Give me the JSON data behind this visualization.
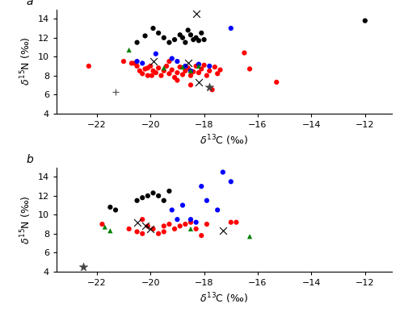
{
  "panel_a": {
    "red_circles": [
      [
        -22.3,
        9.0
      ],
      [
        -21.0,
        9.5
      ],
      [
        -20.7,
        9.3
      ],
      [
        -20.5,
        9.0
      ],
      [
        -20.4,
        8.5
      ],
      [
        -20.3,
        8.2
      ],
      [
        -20.2,
        8.7
      ],
      [
        -20.1,
        8.0
      ],
      [
        -20.0,
        9.0
      ],
      [
        -19.9,
        8.5
      ],
      [
        -19.8,
        8.3
      ],
      [
        -19.7,
        8.8
      ],
      [
        -19.6,
        8.0
      ],
      [
        -19.5,
        8.5
      ],
      [
        -19.4,
        9.0
      ],
      [
        -19.3,
        8.2
      ],
      [
        -19.2,
        8.6
      ],
      [
        -19.1,
        7.8
      ],
      [
        -19.0,
        8.3
      ],
      [
        -18.9,
        8.9
      ],
      [
        -18.8,
        8.1
      ],
      [
        -18.7,
        8.5
      ],
      [
        -18.6,
        8.8
      ],
      [
        -18.5,
        8.0
      ],
      [
        -18.4,
        8.4
      ],
      [
        -18.3,
        9.0
      ],
      [
        -18.2,
        8.3
      ],
      [
        -18.1,
        8.7
      ],
      [
        -18.0,
        9.1
      ],
      [
        -17.9,
        8.0
      ],
      [
        -17.8,
        8.5
      ],
      [
        -17.7,
        6.5
      ],
      [
        -17.6,
        8.9
      ],
      [
        -17.5,
        8.2
      ],
      [
        -17.4,
        8.6
      ],
      [
        -16.5,
        10.4
      ],
      [
        -16.3,
        8.7
      ],
      [
        -15.3,
        7.3
      ],
      [
        -20.6,
        9.3
      ],
      [
        -19.95,
        8.0
      ],
      [
        -19.0,
        7.5
      ],
      [
        -18.5,
        7.0
      ],
      [
        -20.1,
        8.8
      ],
      [
        -19.3,
        9.5
      ]
    ],
    "blue_circles": [
      [
        -20.5,
        9.5
      ],
      [
        -20.3,
        9.3
      ],
      [
        -19.8,
        10.3
      ],
      [
        -19.2,
        9.8
      ],
      [
        -19.0,
        9.5
      ],
      [
        -18.7,
        9.0
      ],
      [
        -18.5,
        8.5
      ],
      [
        -18.2,
        9.2
      ],
      [
        -17.8,
        9.0
      ],
      [
        -17.0,
        13.0
      ]
    ],
    "black_circles": [
      [
        -20.5,
        11.5
      ],
      [
        -20.2,
        12.2
      ],
      [
        -19.9,
        13.0
      ],
      [
        -19.7,
        12.5
      ],
      [
        -19.5,
        12.0
      ],
      [
        -19.3,
        11.5
      ],
      [
        -19.1,
        11.8
      ],
      [
        -18.9,
        12.3
      ],
      [
        -18.8,
        12.0
      ],
      [
        -18.7,
        11.5
      ],
      [
        -18.6,
        12.8
      ],
      [
        -18.5,
        12.3
      ],
      [
        -18.4,
        11.8
      ],
      [
        -18.3,
        12.0
      ],
      [
        -18.2,
        11.7
      ],
      [
        -18.1,
        12.5
      ],
      [
        -18.0,
        11.8
      ],
      [
        -12.0,
        13.8
      ]
    ],
    "green_triangles": [
      [
        -20.8,
        10.7
      ],
      [
        -19.5,
        8.8
      ],
      [
        -18.8,
        8.9
      ],
      [
        -18.5,
        8.5
      ],
      [
        -18.2,
        9.0
      ]
    ],
    "x_markers": [
      [
        -18.3,
        14.5
      ],
      [
        -19.9,
        9.5
      ],
      [
        -18.6,
        9.3
      ],
      [
        -18.2,
        7.3
      ]
    ],
    "plus_markers": [
      [
        -21.3,
        6.3
      ]
    ],
    "star_markers": [
      [
        -17.8,
        6.8
      ]
    ]
  },
  "panel_b": {
    "red_circles": [
      [
        -21.8,
        9.0
      ],
      [
        -20.8,
        8.5
      ],
      [
        -20.5,
        8.2
      ],
      [
        -20.3,
        8.0
      ],
      [
        -20.1,
        8.8
      ],
      [
        -19.9,
        8.5
      ],
      [
        -19.7,
        8.0
      ],
      [
        -19.5,
        8.8
      ],
      [
        -19.3,
        9.0
      ],
      [
        -19.1,
        8.5
      ],
      [
        -18.9,
        8.8
      ],
      [
        -18.7,
        9.0
      ],
      [
        -18.5,
        9.2
      ],
      [
        -18.3,
        8.5
      ],
      [
        -18.1,
        7.8
      ],
      [
        -17.9,
        9.0
      ],
      [
        -17.0,
        9.2
      ],
      [
        -16.8,
        9.2
      ],
      [
        -20.3,
        9.5
      ],
      [
        -19.5,
        8.2
      ]
    ],
    "blue_circles": [
      [
        -19.2,
        10.5
      ],
      [
        -19.0,
        9.5
      ],
      [
        -18.8,
        11.0
      ],
      [
        -18.5,
        9.5
      ],
      [
        -18.3,
        9.2
      ],
      [
        -18.1,
        13.0
      ],
      [
        -17.9,
        11.5
      ],
      [
        -17.5,
        10.5
      ],
      [
        -17.3,
        14.5
      ],
      [
        -17.0,
        13.5
      ]
    ],
    "black_circles": [
      [
        -21.5,
        10.8
      ],
      [
        -21.3,
        10.5
      ],
      [
        -20.5,
        11.5
      ],
      [
        -20.3,
        11.8
      ],
      [
        -20.1,
        12.0
      ],
      [
        -19.9,
        12.3
      ],
      [
        -19.7,
        12.0
      ],
      [
        -19.5,
        11.5
      ],
      [
        -19.3,
        12.5
      ]
    ],
    "green_triangles": [
      [
        -21.7,
        8.7
      ],
      [
        -21.5,
        8.3
      ],
      [
        -18.5,
        8.5
      ],
      [
        -16.3,
        7.7
      ]
    ],
    "x_markers": [
      [
        -20.5,
        9.2
      ],
      [
        -20.2,
        8.8
      ],
      [
        -20.0,
        8.5
      ],
      [
        -17.3,
        8.3
      ]
    ],
    "star_markers": [
      [
        -22.5,
        4.5
      ]
    ]
  },
  "xlim": [
    -23.5,
    -11.0
  ],
  "ylim_a": [
    4.0,
    15.0
  ],
  "ylim_b": [
    4.0,
    15.0
  ],
  "yticks": [
    4,
    6,
    8,
    10,
    12,
    14
  ],
  "xticks": [
    -22,
    -20,
    -18,
    -16,
    -14,
    -12
  ],
  "xlabel": "$\\delta^{13}$C (‰)",
  "ylabel": "$\\delta^{15}$N (‰)",
  "red_color": "#FF0000",
  "blue_color": "#0000FF",
  "black_color": "#000000",
  "green_color": "#008000",
  "marker_size": 20,
  "label_fontsize": 10,
  "tick_fontsize": 8,
  "axis_label_fontsize": 9
}
